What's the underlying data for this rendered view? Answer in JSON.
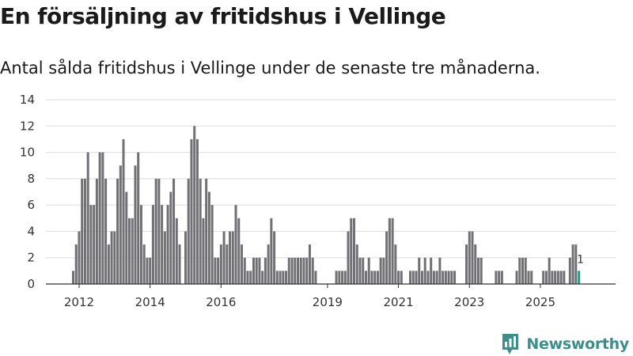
{
  "title": "En försäljning av fritidshus i Vellinge",
  "subtitle": "Antal sålda fritidshus i Vellinge under de senaste tre månaderna.",
  "brand": "Newsworthy",
  "colors": {
    "bar": "#717075",
    "highlight": "#2a9d8f",
    "grid": "#dddddd",
    "brand": "#3a8f8a"
  },
  "chart_data": {
    "type": "bar",
    "title": "",
    "xlabel": "",
    "ylabel": "",
    "ylim": [
      0,
      14
    ],
    "yticks": [
      0,
      2,
      4,
      6,
      8,
      10,
      12,
      14
    ],
    "grid": true,
    "legend": "none",
    "start_month": "2011-11",
    "xtick_labels": [
      "2012",
      "2014",
      "2016",
      "2019",
      "2021",
      "2023",
      "2025"
    ],
    "xtick_months": [
      "2012-01",
      "2014-01",
      "2016-01",
      "2019-01",
      "2021-01",
      "2023-01",
      "2025-01"
    ],
    "annotation": "1",
    "series": [
      {
        "values": [
          1,
          3,
          4,
          8,
          8,
          10,
          6,
          6,
          8,
          10,
          10,
          8,
          3,
          4,
          4,
          8,
          9,
          11,
          7,
          5,
          5,
          9,
          10,
          6,
          3,
          2,
          2,
          6,
          8,
          8,
          6,
          4,
          6,
          7,
          8,
          5,
          3,
          0,
          4,
          8,
          11,
          12,
          11,
          8,
          5,
          8,
          7,
          6,
          2,
          2,
          3,
          4,
          3,
          4,
          4,
          6,
          5,
          3,
          2,
          1,
          1,
          2,
          2,
          2,
          1,
          2,
          3,
          5,
          4,
          1,
          1,
          1,
          1,
          2,
          2,
          2,
          2,
          2,
          2,
          2,
          3,
          2,
          1,
          0,
          0,
          0,
          0,
          0,
          0,
          1,
          1,
          1,
          1,
          4,
          5,
          5,
          3,
          2,
          2,
          1,
          2,
          1,
          1,
          1,
          2,
          2,
          4,
          5,
          5,
          3,
          1,
          1,
          0,
          0,
          1,
          1,
          1,
          2,
          1,
          2,
          1,
          2,
          1,
          1,
          2,
          1,
          1,
          1,
          1,
          1,
          0,
          0,
          0,
          3,
          4,
          4,
          3,
          2,
          2,
          0,
          0,
          0,
          0,
          1,
          1,
          1,
          0,
          0,
          0,
          0,
          1,
          2,
          2,
          2,
          1,
          1,
          0,
          0,
          0,
          1,
          1,
          2,
          1,
          1,
          1,
          1,
          1,
          0,
          2,
          3,
          3,
          1
        ]
      }
    ]
  }
}
